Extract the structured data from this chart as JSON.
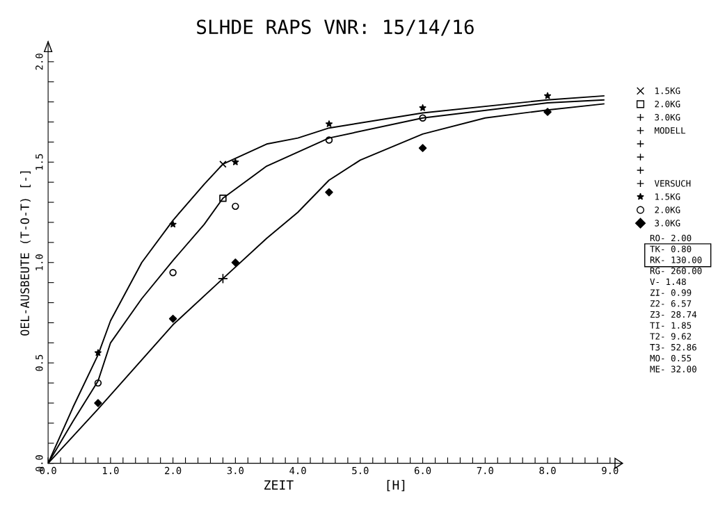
{
  "chart_data": {
    "type": "line",
    "title": "SLHDE RAPS VNR: 15/14/16",
    "xlabel": "ZEIT            [H]",
    "ylabel": "OEL-AUSBEUTE (T-O-T) [-]",
    "xlim": [
      0,
      9.2
    ],
    "ylim": [
      0,
      2.1
    ],
    "xticks": [
      {
        "value": 0,
        "label": "0.0"
      },
      {
        "value": 0.2,
        "label": null
      },
      {
        "value": 0.4,
        "label": null
      },
      {
        "value": 0.6,
        "label": null
      },
      {
        "value": 0.8,
        "label": null
      },
      {
        "value": 1,
        "label": "1.0"
      },
      {
        "value": 1.2,
        "label": null
      },
      {
        "value": 1.4,
        "label": null
      },
      {
        "value": 1.6,
        "label": null
      },
      {
        "value": 1.8,
        "label": null
      },
      {
        "value": 2,
        "label": "2.0"
      },
      {
        "value": 2.2,
        "label": null
      },
      {
        "value": 2.4,
        "label": null
      },
      {
        "value": 2.6,
        "label": null
      },
      {
        "value": 2.8,
        "label": null
      },
      {
        "value": 3,
        "label": "3.0"
      },
      {
        "value": 3.2,
        "label": null
      },
      {
        "value": 3.4,
        "label": null
      },
      {
        "value": 3.6,
        "label": null
      },
      {
        "value": 3.8,
        "label": null
      },
      {
        "value": 4,
        "label": "4.0"
      },
      {
        "value": 4.2,
        "label": null
      },
      {
        "value": 4.4,
        "label": null
      },
      {
        "value": 4.6,
        "label": null
      },
      {
        "value": 4.8,
        "label": null
      },
      {
        "value": 5,
        "label": "5.0"
      },
      {
        "value": 5.2,
        "label": null
      },
      {
        "value": 5.4,
        "label": null
      },
      {
        "value": 5.6,
        "label": null
      },
      {
        "value": 5.8,
        "label": null
      },
      {
        "value": 6,
        "label": "6.0"
      },
      {
        "value": 6.2,
        "label": null
      },
      {
        "value": 6.4,
        "label": null
      },
      {
        "value": 6.6,
        "label": null
      },
      {
        "value": 6.8,
        "label": null
      },
      {
        "value": 7,
        "label": "7.0"
      },
      {
        "value": 7.2,
        "label": null
      },
      {
        "value": 7.4,
        "label": null
      },
      {
        "value": 7.6,
        "label": null
      },
      {
        "value": 7.8,
        "label": null
      },
      {
        "value": 8,
        "label": "8.0"
      },
      {
        "value": 8.2,
        "label": null
      },
      {
        "value": 8.4,
        "label": null
      },
      {
        "value": 8.6,
        "label": null
      },
      {
        "value": 8.8,
        "label": null
      },
      {
        "value": 9,
        "label": "9.0"
      }
    ],
    "yticks": [
      {
        "value": 0,
        "label": "0.0"
      },
      {
        "value": 0.1,
        "label": null
      },
      {
        "value": 0.2,
        "label": null
      },
      {
        "value": 0.3,
        "label": null
      },
      {
        "value": 0.4,
        "label": null
      },
      {
        "value": 0.5,
        "label": "0.5"
      },
      {
        "value": 0.6,
        "label": null
      },
      {
        "value": 0.7,
        "label": null
      },
      {
        "value": 0.8,
        "label": null
      },
      {
        "value": 0.9,
        "label": null
      },
      {
        "value": 1.0,
        "label": "1.0"
      },
      {
        "value": 1.1,
        "label": null
      },
      {
        "value": 1.2,
        "label": null
      },
      {
        "value": 1.3,
        "label": null
      },
      {
        "value": 1.4,
        "label": null
      },
      {
        "value": 1.5,
        "label": "1.5"
      },
      {
        "value": 1.6,
        "label": null
      },
      {
        "value": 1.7,
        "label": null
      },
      {
        "value": 1.8,
        "label": null
      },
      {
        "value": 1.9,
        "label": null
      },
      {
        "value": 2.0,
        "label": "2.0"
      }
    ],
    "grid": false,
    "legend": "right",
    "series": [
      {
        "color": "#000000",
        "marker": "none",
        "x": [
          0,
          0.4,
          0.8,
          1.0,
          1.5,
          2.0,
          2.5,
          2.8,
          3.5,
          4.0,
          4.5,
          6.0,
          8.0,
          8.9
        ],
        "values": [
          0,
          0.28,
          0.54,
          0.71,
          1.0,
          1.21,
          1.39,
          1.49,
          1.59,
          1.62,
          1.67,
          1.745,
          1.81,
          1.83
        ]
      },
      {
        "color": "#000000",
        "marker": "none",
        "x": [
          0,
          0.4,
          0.8,
          1.0,
          1.5,
          2.0,
          2.5,
          2.8,
          3.5,
          4.0,
          4.5,
          6.0,
          8.0,
          8.9
        ],
        "values": [
          0,
          0.21,
          0.41,
          0.6,
          0.82,
          1.01,
          1.19,
          1.32,
          1.48,
          1.55,
          1.62,
          1.72,
          1.795,
          1.81
        ]
      },
      {
        "color": "#000000",
        "marker": "none",
        "x": [
          0,
          0.8,
          2.0,
          2.8,
          3.5,
          4.0,
          4.5,
          5.0,
          6.0,
          7.0,
          8.0,
          8.9
        ],
        "values": [
          0,
          0.27,
          0.69,
          0.92,
          1.12,
          1.25,
          1.41,
          1.51,
          1.64,
          1.72,
          1.76,
          1.79
        ]
      },
      {
        "type": "scatter",
        "name": "1.5KG",
        "color": "#000000",
        "marker": "cross",
        "x": [
          2.8
        ],
        "values": [
          1.49
        ]
      },
      {
        "type": "scatter",
        "name": "2.0KG",
        "color": "#000000",
        "marker": "square",
        "x": [
          2.8
        ],
        "values": [
          1.32
        ]
      },
      {
        "type": "scatter",
        "name": "3.0KG",
        "color": "#000000",
        "marker": "plus",
        "x": [
          2.8
        ],
        "values": [
          0.92
        ]
      },
      {
        "type": "scatter",
        "name": "1.5KG",
        "color": "#000000",
        "marker": "star",
        "x": [
          0.8,
          2.0,
          3.0,
          4.5,
          6.0,
          8.0
        ],
        "values": [
          0.55,
          1.19,
          1.5,
          1.69,
          1.77,
          1.83
        ]
      },
      {
        "type": "scatter",
        "name": "2.0KG",
        "color": "#000000",
        "marker": "circle",
        "x": [
          0.8,
          2.0,
          3.0,
          4.5,
          6.0
        ],
        "values": [
          0.4,
          0.95,
          1.28,
          1.61,
          1.72
        ]
      },
      {
        "type": "scatter",
        "name": "3.0KG",
        "color": "#000000",
        "marker": "diamond",
        "x": [
          0.8,
          2.0,
          3.0,
          4.5,
          6.0,
          8.0
        ],
        "values": [
          0.3,
          0.72,
          1.0,
          1.35,
          1.57,
          1.75
        ]
      }
    ],
    "annotations": [
      "MODELL",
      "VERSUCH",
      "RO- 2.00",
      "TK- 0.80",
      "RK- 130.00",
      "RG- 260.00",
      "V- 1.48",
      "ZI- 0.99",
      "Z2- 6.57",
      "Z3- 28.74",
      "TI- 1.85",
      "T2- 9.62",
      "T3- 52.86",
      "MO- 0.55",
      "ME- 32.00"
    ]
  }
}
